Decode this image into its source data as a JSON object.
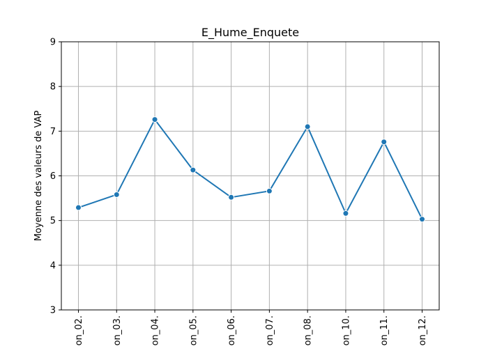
{
  "chart_data": {
    "type": "line",
    "title": "E_Hume_Enquete",
    "xlabel": "",
    "ylabel": "Moyenne des valeurs de VAP",
    "categories": [
      "on_02.",
      "on_03.",
      "on_04.",
      "on_05.",
      "on_06.",
      "on_07.",
      "on_08.",
      "on_10.",
      "on_11.",
      "on_12."
    ],
    "series": [
      {
        "values": [
          5.29,
          5.58,
          7.26,
          6.13,
          5.52,
          5.66,
          7.1,
          5.16,
          6.76,
          5.03
        ],
        "color": "#1f77b4"
      }
    ],
    "ylim": [
      3,
      9
    ],
    "yticks": [
      3,
      4,
      5,
      6,
      7,
      8,
      9
    ],
    "grid": true,
    "legend": "none"
  }
}
